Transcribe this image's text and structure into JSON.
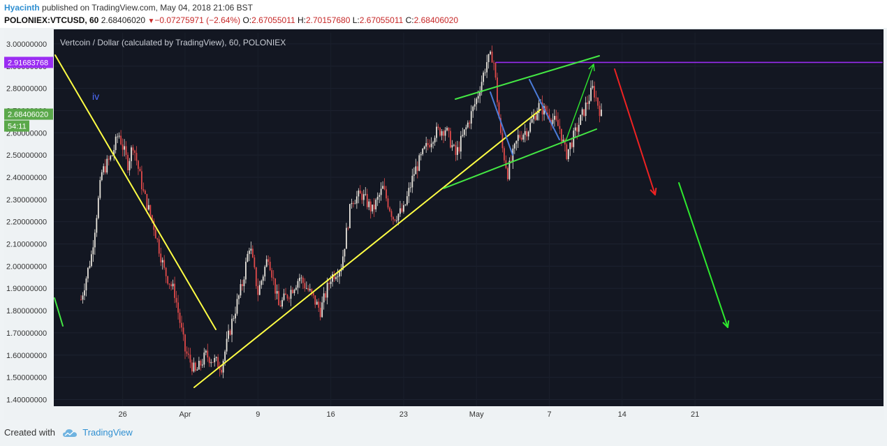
{
  "header": {
    "author": "Hyacinth",
    "published_text": "published on TradingView.com, May 04, 2018 21:06 BST",
    "symbol": "POLONIEX:VTCUSD, 60",
    "last_price": "2.68406020",
    "change": "−0.07275971 (−2.64%)",
    "open_label": "O:",
    "open": "2.67055011",
    "high_label": "H:",
    "high": "2.70157680",
    "low_label": "L:",
    "low": "2.67055011",
    "close_label": "C:",
    "close": "2.68406020",
    "down_icon": "triangle-down-icon"
  },
  "chart_data": {
    "type": "candlestick",
    "title": "Vertcoin / Dollar (calculated by TradingView), 60, POLONIEX",
    "ylim": [
      1.37,
      3.05
    ],
    "y_ticks": [
      "3.00000000",
      "2.90000000",
      "2.80000000",
      "2.70000000",
      "2.60000000",
      "2.50000000",
      "2.40000000",
      "2.30000000",
      "2.20000000",
      "2.10000000",
      "2.00000000",
      "1.90000000",
      "1.80000000",
      "1.70000000",
      "1.60000000",
      "1.50000000",
      "1.40000000"
    ],
    "x_ticks": [
      "26",
      "Apr",
      "9",
      "16",
      "23",
      "May",
      "7",
      "14",
      "21"
    ],
    "price_path": [
      {
        "day": 0,
        "price": 1.85
      },
      {
        "day": 1,
        "price": 2.05
      },
      {
        "day": 2,
        "price": 2.42
      },
      {
        "day": 3,
        "price": 2.5
      },
      {
        "day": 3.6,
        "price": 2.6
      },
      {
        "day": 4.5,
        "price": 2.46
      },
      {
        "day": 5,
        "price": 2.55
      },
      {
        "day": 6,
        "price": 2.33
      },
      {
        "day": 7,
        "price": 2.18
      },
      {
        "day": 8,
        "price": 1.98
      },
      {
        "day": 9,
        "price": 1.88
      },
      {
        "day": 10,
        "price": 1.62
      },
      {
        "day": 11,
        "price": 1.52
      },
      {
        "day": 12,
        "price": 1.6
      },
      {
        "day": 13.5,
        "price": 1.55
      },
      {
        "day": 14.5,
        "price": 1.75
      },
      {
        "day": 15.5,
        "price": 1.92
      },
      {
        "day": 16.2,
        "price": 2.1
      },
      {
        "day": 17,
        "price": 1.88
      },
      {
        "day": 18,
        "price": 2.05
      },
      {
        "day": 19,
        "price": 1.82
      },
      {
        "day": 20,
        "price": 1.88
      },
      {
        "day": 21,
        "price": 1.95
      },
      {
        "day": 22,
        "price": 1.88
      },
      {
        "day": 23,
        "price": 1.8
      },
      {
        "day": 24,
        "price": 1.95
      },
      {
        "day": 25,
        "price": 2.0
      },
      {
        "day": 26,
        "price": 2.3
      },
      {
        "day": 27,
        "price": 2.32
      },
      {
        "day": 28,
        "price": 2.25
      },
      {
        "day": 29,
        "price": 2.35
      },
      {
        "day": 30,
        "price": 2.22
      },
      {
        "day": 31,
        "price": 2.25
      },
      {
        "day": 32,
        "price": 2.42
      },
      {
        "day": 33,
        "price": 2.52
      },
      {
        "day": 34,
        "price": 2.6
      },
      {
        "day": 35,
        "price": 2.62
      },
      {
        "day": 36,
        "price": 2.5
      },
      {
        "day": 37,
        "price": 2.62
      },
      {
        "day": 38,
        "price": 2.75
      },
      {
        "day": 39,
        "price": 2.92
      },
      {
        "day": 39.6,
        "price": 2.95
      },
      {
        "day": 40.4,
        "price": 2.55
      },
      {
        "day": 41,
        "price": 2.42
      },
      {
        "day": 42,
        "price": 2.58
      },
      {
        "day": 43,
        "price": 2.62
      },
      {
        "day": 44,
        "price": 2.72
      },
      {
        "day": 45,
        "price": 2.68
      },
      {
        "day": 46,
        "price": 2.62
      },
      {
        "day": 46.6,
        "price": 2.5
      },
      {
        "day": 47.5,
        "price": 2.6
      },
      {
        "day": 48.5,
        "price": 2.72
      },
      {
        "day": 49.2,
        "price": 2.8
      },
      {
        "day": 50,
        "price": 2.68
      }
    ],
    "current_price_label": "2.68406020",
    "current_price": 2.684,
    "countdown_label": "54:11",
    "resistance_label": "2.91683768",
    "resistance_price": 2.9168,
    "wave_label": "iv",
    "colors": {
      "background": "#131722",
      "up": "#e8e4dc",
      "down": "#e04a4a",
      "trendline": "#ffff44",
      "channel": "#44e844",
      "wedge": "#4b7bd8",
      "resistance": "#9a2cf2",
      "arrow_down": "#ee2222",
      "arrow_green": "#2ee82e",
      "price_badge": "#5aa84a",
      "resistance_badge": "#9a2cf2"
    }
  },
  "footer": {
    "created_with": "Created with",
    "brand": "TradingView",
    "logo_icon": "tradingview-cloud-icon"
  }
}
